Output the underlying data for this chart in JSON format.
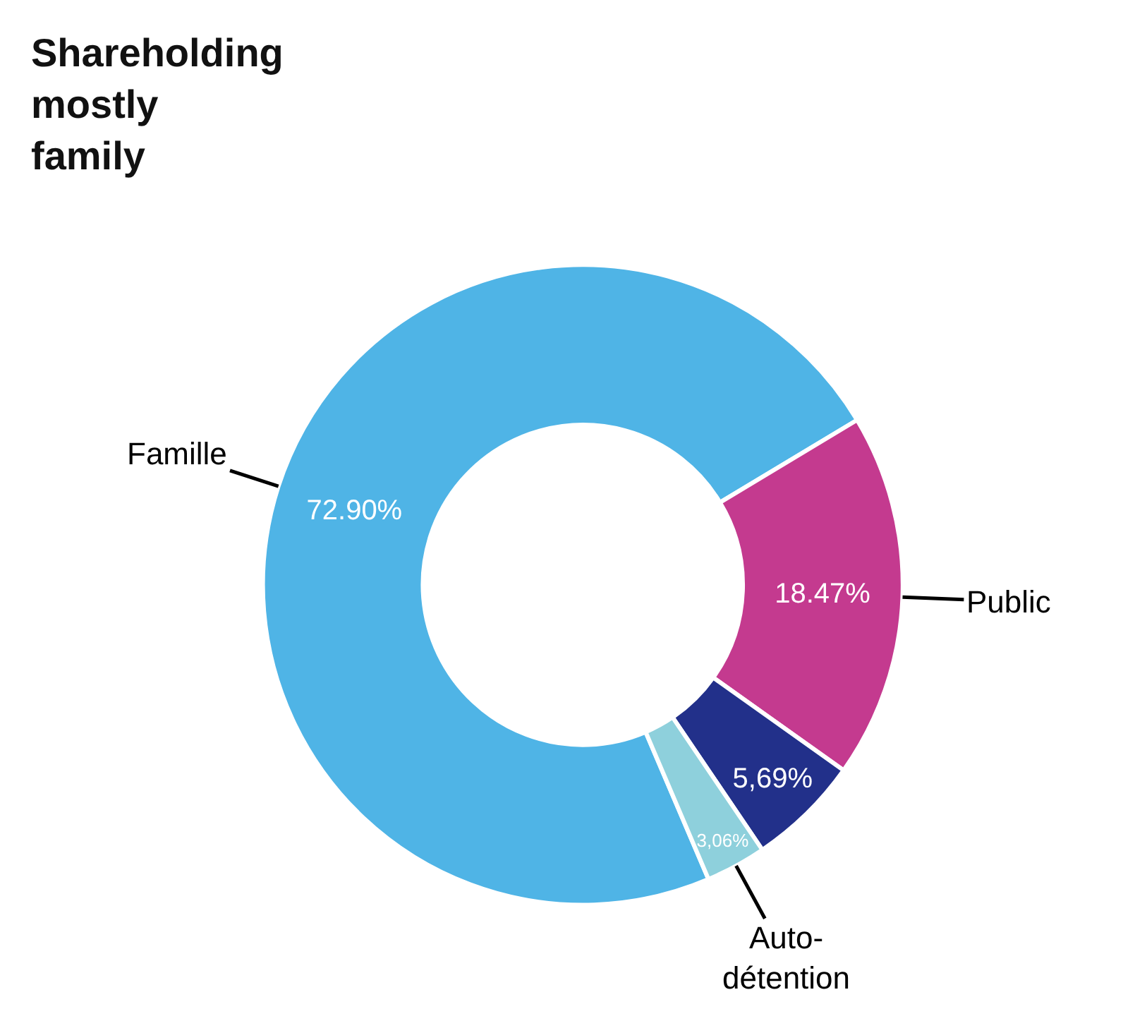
{
  "chart_data": {
    "type": "donut",
    "title": "Shareholding\nmostly\nfamily",
    "categories": [
      "Famille",
      "Public",
      null,
      "Auto-\ndétention"
    ],
    "values": [
      72.9,
      18.47,
      5.69,
      3.06
    ],
    "value_labels": [
      "72.90%",
      "18.47%",
      "5,69%",
      "3,06%"
    ],
    "colors": [
      "#4fb4e6",
      "#c43a8f",
      "#22308a",
      "#8ed0dc"
    ],
    "legend": false
  }
}
